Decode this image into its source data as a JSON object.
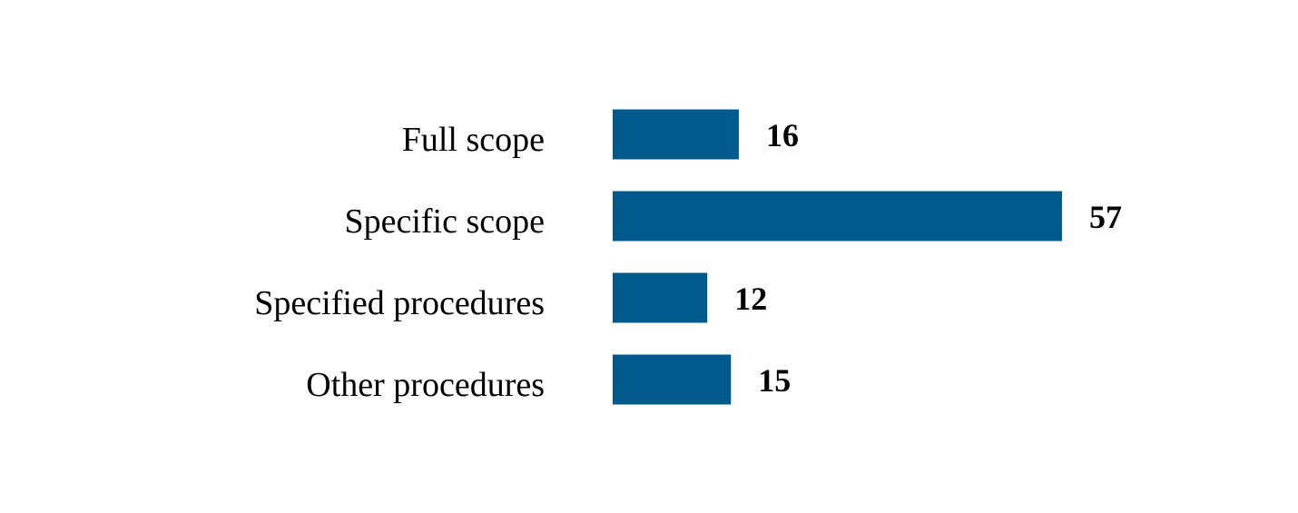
{
  "chart_data": {
    "type": "bar",
    "orientation": "horizontal",
    "categories": [
      "Full scope",
      "Specific scope",
      "Specified procedures",
      "Other procedures"
    ],
    "values": [
      16,
      57,
      12,
      15
    ],
    "data_labels": [
      "16",
      "57",
      "12",
      "15"
    ],
    "title": "",
    "xlabel": "",
    "ylabel": "",
    "xlim": [
      0,
      57
    ],
    "grid": false,
    "legend": "none",
    "bar_color": "#005B8C",
    "label_color": "#000000",
    "background": "#FFFFFF"
  }
}
